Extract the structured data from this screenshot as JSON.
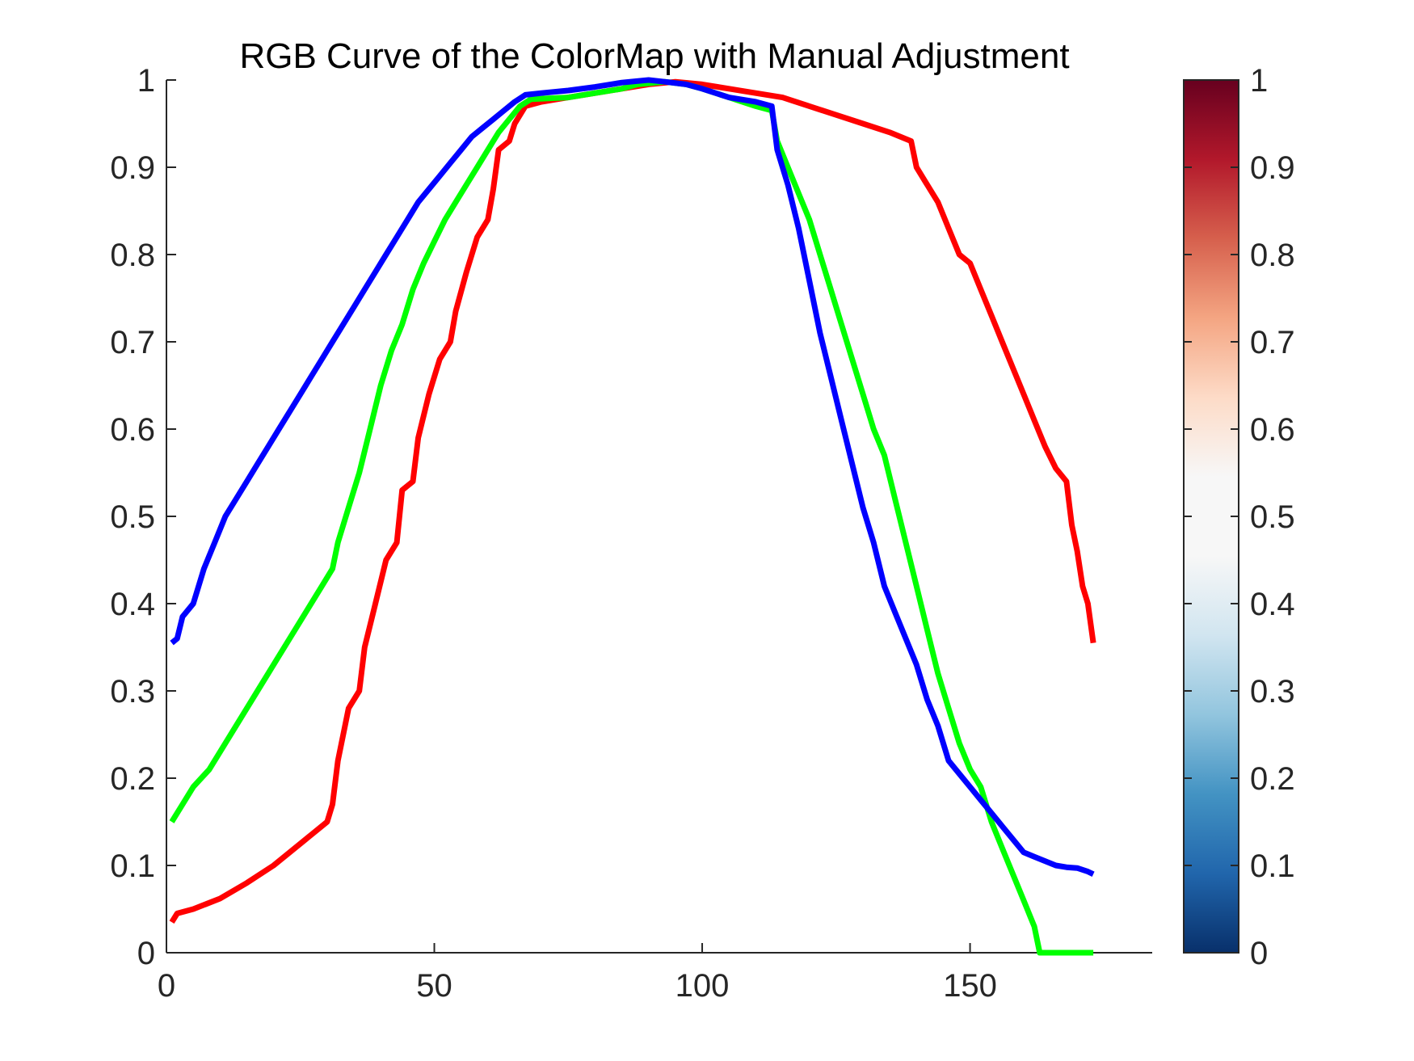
{
  "chart_data": {
    "type": "line",
    "title": "RGB Curve of the ColorMap with Manual Adjustment",
    "xlabel": "",
    "ylabel": "",
    "xlim": [
      0,
      184
    ],
    "ylim": [
      0,
      1
    ],
    "x_ticks": [
      "0",
      "50",
      "100",
      "150"
    ],
    "y_ticks": [
      "0",
      "0.1",
      "0.2",
      "0.3",
      "0.4",
      "0.5",
      "0.6",
      "0.7",
      "0.8",
      "0.9",
      "1"
    ],
    "grid": false,
    "legend": "none",
    "series": [
      {
        "color": "#ff0000",
        "points": [
          [
            1,
            0.035
          ],
          [
            2,
            0.045
          ],
          [
            5,
            0.05
          ],
          [
            10,
            0.062
          ],
          [
            15,
            0.08
          ],
          [
            20,
            0.1
          ],
          [
            25,
            0.125
          ],
          [
            30,
            0.15
          ],
          [
            31,
            0.17
          ],
          [
            32,
            0.22
          ],
          [
            34,
            0.28
          ],
          [
            36,
            0.3
          ],
          [
            37,
            0.35
          ],
          [
            39,
            0.4
          ],
          [
            41,
            0.45
          ],
          [
            43,
            0.47
          ],
          [
            44,
            0.53
          ],
          [
            46,
            0.54
          ],
          [
            47,
            0.59
          ],
          [
            49,
            0.64
          ],
          [
            51,
            0.68
          ],
          [
            53,
            0.7
          ],
          [
            54,
            0.735
          ],
          [
            56,
            0.78
          ],
          [
            58,
            0.82
          ],
          [
            60,
            0.84
          ],
          [
            61,
            0.875
          ],
          [
            62,
            0.92
          ],
          [
            64,
            0.93
          ],
          [
            65,
            0.95
          ],
          [
            67,
            0.97
          ],
          [
            70,
            0.975
          ],
          [
            75,
            0.98
          ],
          [
            80,
            0.985
          ],
          [
            85,
            0.99
          ],
          [
            90,
            0.995
          ],
          [
            95,
            0.998
          ],
          [
            100,
            0.995
          ],
          [
            105,
            0.99
          ],
          [
            110,
            0.985
          ],
          [
            115,
            0.98
          ],
          [
            120,
            0.97
          ],
          [
            125,
            0.96
          ],
          [
            130,
            0.95
          ],
          [
            135,
            0.94
          ],
          [
            139,
            0.93
          ],
          [
            140,
            0.9
          ],
          [
            142,
            0.88
          ],
          [
            144,
            0.86
          ],
          [
            146,
            0.83
          ],
          [
            148,
            0.8
          ],
          [
            150,
            0.79
          ],
          [
            152,
            0.76
          ],
          [
            154,
            0.73
          ],
          [
            156,
            0.7
          ],
          [
            158,
            0.67
          ],
          [
            160,
            0.64
          ],
          [
            162,
            0.61
          ],
          [
            164,
            0.58
          ],
          [
            166,
            0.555
          ],
          [
            168,
            0.54
          ],
          [
            169,
            0.49
          ],
          [
            170,
            0.46
          ],
          [
            171,
            0.42
          ],
          [
            172,
            0.4
          ],
          [
            173,
            0.355
          ]
        ]
      },
      {
        "color": "#00ff00",
        "points": [
          [
            1,
            0.15
          ],
          [
            3,
            0.17
          ],
          [
            5,
            0.19
          ],
          [
            8,
            0.21
          ],
          [
            11,
            0.24
          ],
          [
            14,
            0.27
          ],
          [
            17,
            0.3
          ],
          [
            20,
            0.33
          ],
          [
            23,
            0.36
          ],
          [
            26,
            0.39
          ],
          [
            29,
            0.42
          ],
          [
            31,
            0.44
          ],
          [
            32,
            0.47
          ],
          [
            34,
            0.51
          ],
          [
            36,
            0.55
          ],
          [
            38,
            0.6
          ],
          [
            40,
            0.65
          ],
          [
            42,
            0.69
          ],
          [
            44,
            0.72
          ],
          [
            46,
            0.76
          ],
          [
            48,
            0.79
          ],
          [
            50,
            0.815
          ],
          [
            52,
            0.84
          ],
          [
            54,
            0.86
          ],
          [
            56,
            0.88
          ],
          [
            58,
            0.9
          ],
          [
            60,
            0.92
          ],
          [
            62,
            0.94
          ],
          [
            64,
            0.955
          ],
          [
            66,
            0.97
          ],
          [
            68,
            0.978
          ],
          [
            75,
            0.98
          ],
          [
            80,
            0.985
          ],
          [
            85,
            0.99
          ],
          [
            88,
            0.995
          ],
          [
            93,
            0.998
          ],
          [
            97,
            0.995
          ],
          [
            100,
            0.99
          ],
          [
            105,
            0.98
          ],
          [
            110,
            0.97
          ],
          [
            113,
            0.965
          ],
          [
            114,
            0.93
          ],
          [
            116,
            0.9
          ],
          [
            118,
            0.87
          ],
          [
            120,
            0.84
          ],
          [
            122,
            0.8
          ],
          [
            124,
            0.76
          ],
          [
            126,
            0.72
          ],
          [
            128,
            0.68
          ],
          [
            130,
            0.64
          ],
          [
            132,
            0.6
          ],
          [
            134,
            0.57
          ],
          [
            136,
            0.52
          ],
          [
            138,
            0.47
          ],
          [
            140,
            0.42
          ],
          [
            142,
            0.37
          ],
          [
            144,
            0.32
          ],
          [
            146,
            0.28
          ],
          [
            148,
            0.24
          ],
          [
            150,
            0.21
          ],
          [
            152,
            0.19
          ],
          [
            154,
            0.15
          ],
          [
            156,
            0.12
          ],
          [
            158,
            0.09
          ],
          [
            160,
            0.06
          ],
          [
            162,
            0.03
          ],
          [
            163,
            0.0
          ],
          [
            173,
            0.0
          ]
        ]
      },
      {
        "color": "#0000ff",
        "points": [
          [
            1,
            0.355
          ],
          [
            2,
            0.36
          ],
          [
            3,
            0.385
          ],
          [
            5,
            0.4
          ],
          [
            7,
            0.44
          ],
          [
            9,
            0.47
          ],
          [
            11,
            0.5
          ],
          [
            13,
            0.52
          ],
          [
            15,
            0.54
          ],
          [
            17,
            0.56
          ],
          [
            19,
            0.58
          ],
          [
            21,
            0.6
          ],
          [
            23,
            0.62
          ],
          [
            25,
            0.64
          ],
          [
            27,
            0.66
          ],
          [
            29,
            0.68
          ],
          [
            31,
            0.7
          ],
          [
            33,
            0.72
          ],
          [
            35,
            0.74
          ],
          [
            37,
            0.76
          ],
          [
            39,
            0.78
          ],
          [
            41,
            0.8
          ],
          [
            43,
            0.82
          ],
          [
            45,
            0.84
          ],
          [
            47,
            0.86
          ],
          [
            49,
            0.875
          ],
          [
            51,
            0.89
          ],
          [
            53,
            0.905
          ],
          [
            55,
            0.92
          ],
          [
            57,
            0.935
          ],
          [
            59,
            0.945
          ],
          [
            61,
            0.955
          ],
          [
            63,
            0.965
          ],
          [
            65,
            0.975
          ],
          [
            67,
            0.983
          ],
          [
            70,
            0.985
          ],
          [
            75,
            0.988
          ],
          [
            80,
            0.992
          ],
          [
            85,
            0.997
          ],
          [
            90,
            1.0
          ],
          [
            93,
            0.998
          ],
          [
            97,
            0.995
          ],
          [
            100,
            0.99
          ],
          [
            105,
            0.98
          ],
          [
            110,
            0.975
          ],
          [
            113,
            0.97
          ],
          [
            114,
            0.92
          ],
          [
            116,
            0.88
          ],
          [
            118,
            0.83
          ],
          [
            120,
            0.77
          ],
          [
            122,
            0.71
          ],
          [
            124,
            0.66
          ],
          [
            126,
            0.61
          ],
          [
            128,
            0.56
          ],
          [
            130,
            0.51
          ],
          [
            132,
            0.47
          ],
          [
            134,
            0.42
          ],
          [
            136,
            0.39
          ],
          [
            138,
            0.36
          ],
          [
            140,
            0.33
          ],
          [
            142,
            0.29
          ],
          [
            144,
            0.26
          ],
          [
            146,
            0.22
          ],
          [
            148,
            0.205
          ],
          [
            150,
            0.19
          ],
          [
            152,
            0.175
          ],
          [
            154,
            0.16
          ],
          [
            156,
            0.145
          ],
          [
            158,
            0.13
          ],
          [
            160,
            0.115
          ],
          [
            162,
            0.11
          ],
          [
            164,
            0.105
          ],
          [
            166,
            0.1
          ],
          [
            168,
            0.098
          ],
          [
            170,
            0.097
          ],
          [
            172,
            0.093
          ],
          [
            173,
            0.09
          ]
        ]
      }
    ],
    "colorbar": {
      "ticks": [
        "0",
        "0.1",
        "0.2",
        "0.3",
        "0.4",
        "0.5",
        "0.6",
        "0.7",
        "0.8",
        "0.9",
        "1"
      ],
      "range": [
        0,
        1
      ],
      "colors": [
        "#08306b",
        "#2166ac",
        "#4393c3",
        "#92c5de",
        "#d1e5f0",
        "#f7f7f7",
        "#f7f7f7",
        "#fddbc7",
        "#f4a582",
        "#d6604d",
        "#b2182b",
        "#67001f"
      ]
    }
  }
}
